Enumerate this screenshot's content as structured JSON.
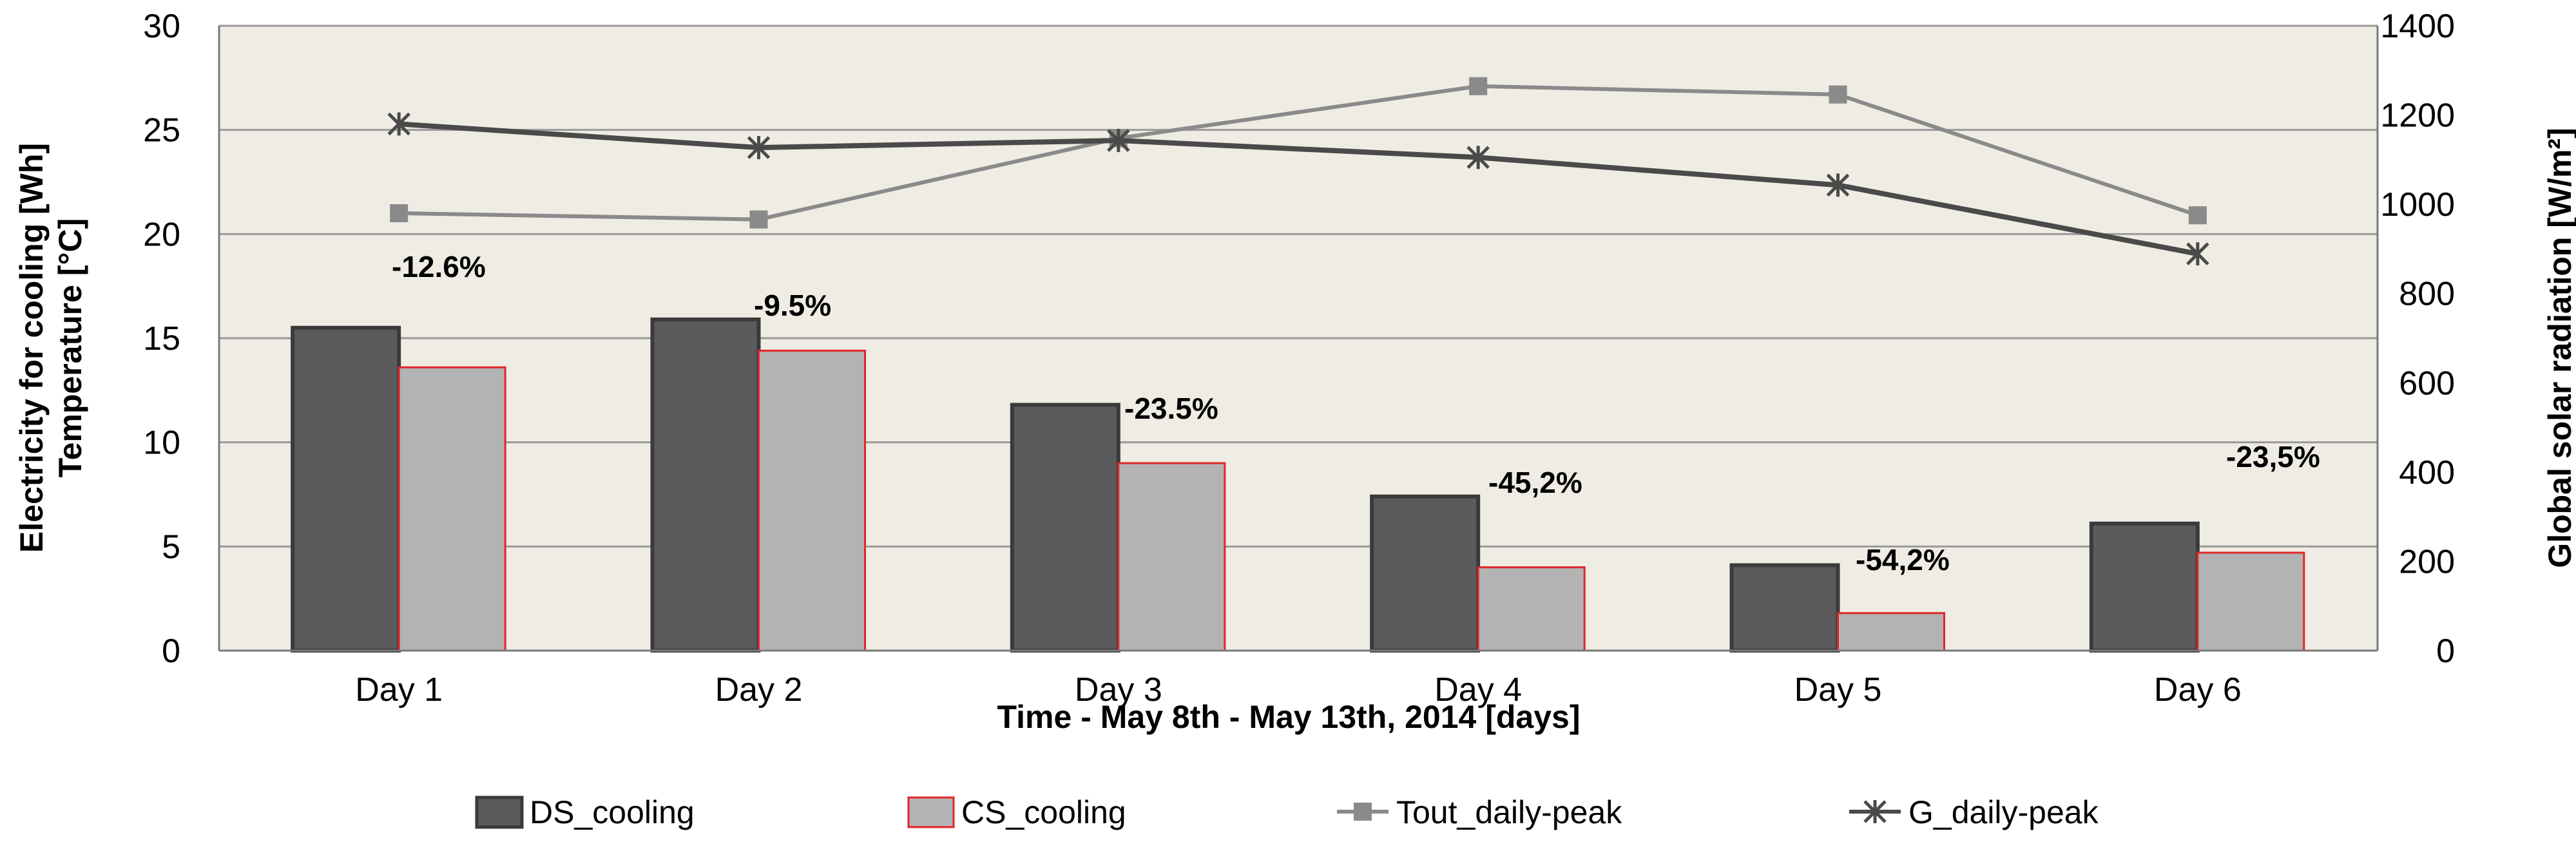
{
  "chart_data": {
    "type": "bar",
    "categories": [
      "Day 1",
      "Day 2",
      "Day 3",
      "Day 4",
      "Day 5",
      "Day 6"
    ],
    "bar_series": [
      {
        "name": "DS_cooling",
        "values": [
          15.5,
          15.9,
          11.8,
          7.4,
          4.1,
          6.1
        ]
      },
      {
        "name": "CS_cooling",
        "values": [
          13.6,
          14.4,
          9.0,
          4.0,
          1.8,
          4.7
        ]
      }
    ],
    "line_series": [
      {
        "name": "Tout_daily-peak",
        "axis": "left",
        "marker": "square",
        "values": [
          21.0,
          20.7,
          24.6,
          27.1,
          26.7,
          20.9
        ]
      },
      {
        "name": "G_daily-peak",
        "axis": "right",
        "marker": "star",
        "values": [
          1180,
          1127,
          1143,
          1105,
          1043,
          889
        ]
      }
    ],
    "annotations": [
      "-12.6%",
      "-9.5%",
      "-23.5%",
      "-45,2%",
      "-54,2%",
      "-23,5%"
    ],
    "xlabel": "Time - May 8th - May 13th, 2014   [days]",
    "ylabel_left_line1": "Electricity for cooling  [Wh]",
    "ylabel_left_line2": "Temperature   [°C]",
    "ylabel_right": "Global solar radiation   [W/m²]",
    "ylim_left": [
      0,
      30
    ],
    "ylim_right": [
      0,
      1400
    ],
    "yticks_left": [
      0,
      5,
      10,
      15,
      20,
      25,
      30
    ],
    "yticks_right": [
      0,
      200,
      400,
      600,
      800,
      1000,
      1200,
      1400
    ],
    "grid": true,
    "legend_position": "bottom",
    "colors": {
      "plot_background": "#efece3",
      "grid": "#9a9a9a",
      "DS_cooling": "#5b5b5b",
      "DS_cooling_border": "#3a3a3a",
      "CS_cooling": "#b3b3b3",
      "CS_cooling_border": "#e0262a",
      "Tout_daily-peak": "#8a8a8a",
      "G_daily-peak": "#4a4a4a"
    }
  }
}
